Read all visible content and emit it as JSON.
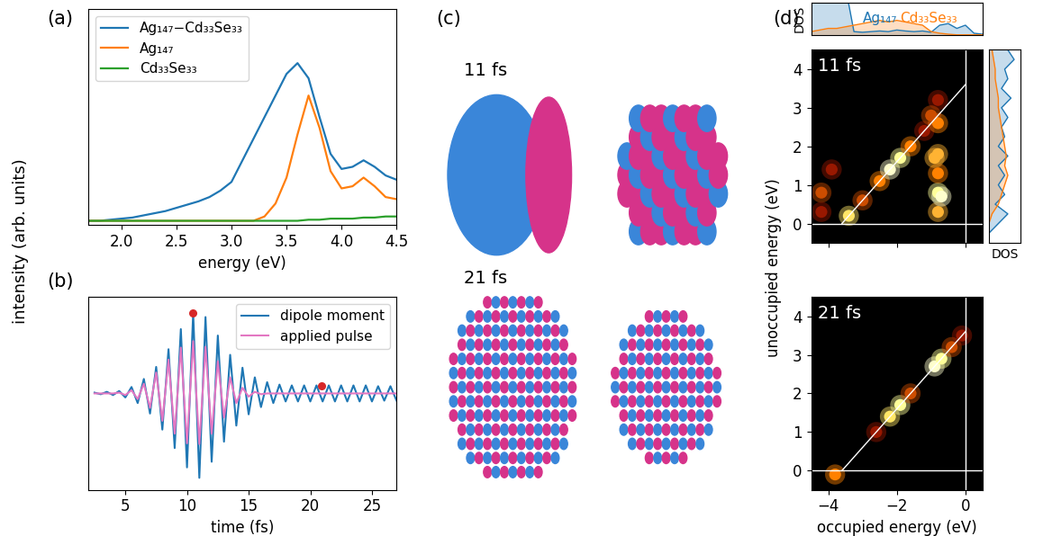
{
  "chart_data": [
    {
      "type": "line",
      "panel": "(a)",
      "xlabel": "energy (eV)",
      "ylabel": "intensity (arb. units)",
      "x": [
        1.7,
        1.8,
        1.9,
        2.0,
        2.1,
        2.2,
        2.3,
        2.4,
        2.5,
        2.6,
        2.7,
        2.8,
        2.9,
        3.0,
        3.1,
        3.2,
        3.3,
        3.4,
        3.5,
        3.6,
        3.7,
        3.8,
        3.9,
        4.0,
        4.1,
        4.2,
        4.3,
        4.4,
        4.5
      ],
      "series": [
        {
          "name": "Ag₁₄₇−Cd₃₃Se₃₃",
          "color": "#1f77b4",
          "values": [
            0.02,
            0.02,
            0.025,
            0.03,
            0.035,
            0.045,
            0.055,
            0.065,
            0.08,
            0.095,
            0.11,
            0.13,
            0.16,
            0.2,
            0.3,
            0.4,
            0.5,
            0.6,
            0.7,
            0.75,
            0.68,
            0.5,
            0.33,
            0.26,
            0.27,
            0.3,
            0.27,
            0.23,
            0.21
          ]
        },
        {
          "name": "Ag₁₄₇",
          "color": "#ff7f0e",
          "values": [
            0.02,
            0.02,
            0.02,
            0.02,
            0.02,
            0.02,
            0.02,
            0.02,
            0.02,
            0.02,
            0.02,
            0.02,
            0.02,
            0.02,
            0.02,
            0.02,
            0.04,
            0.1,
            0.22,
            0.42,
            0.6,
            0.45,
            0.25,
            0.17,
            0.18,
            0.22,
            0.18,
            0.13,
            0.12
          ]
        },
        {
          "name": "Cd₃₃Se₃₃",
          "color": "#2ca02c",
          "values": [
            0.02,
            0.02,
            0.02,
            0.02,
            0.02,
            0.02,
            0.02,
            0.02,
            0.02,
            0.02,
            0.02,
            0.02,
            0.02,
            0.02,
            0.02,
            0.02,
            0.02,
            0.02,
            0.02,
            0.02,
            0.025,
            0.025,
            0.03,
            0.03,
            0.03,
            0.035,
            0.035,
            0.04,
            0.04
          ]
        }
      ],
      "xlim": [
        1.7,
        4.5
      ],
      "xticks": [
        2.0,
        2.5,
        3.0,
        3.5,
        4.0,
        4.5
      ],
      "ylim": [
        0,
        1
      ],
      "yticks": [],
      "tick_labels": "x",
      "legend": "upper left"
    },
    {
      "type": "line",
      "panel": "(b)",
      "xlabel": "time (fs)",
      "x": [
        2.5,
        3.0,
        3.5,
        4.0,
        4.5,
        5.0,
        5.5,
        6.0,
        6.5,
        7.0,
        7.5,
        8.0,
        8.5,
        9.0,
        9.5,
        10.0,
        10.5,
        11.0,
        11.5,
        12.0,
        12.5,
        13.0,
        13.5,
        14.0,
        14.5,
        15.0,
        15.5,
        16.0,
        16.5,
        17.0,
        17.5,
        18.0,
        18.5,
        19.0,
        19.5,
        20.0,
        20.5,
        21.0,
        21.5,
        22.0,
        22.5,
        23.0,
        23.5,
        24.0,
        24.5,
        25.0,
        25.5,
        26.0,
        26.5,
        27.0
      ],
      "series": [
        {
          "name": "dipole moment",
          "color": "#1f77b4",
          "values": [
            0.01,
            -0.01,
            0.02,
            -0.02,
            0.03,
            -0.05,
            0.08,
            -0.12,
            0.18,
            -0.25,
            0.33,
            -0.45,
            0.55,
            -0.68,
            0.8,
            -0.92,
            1.0,
            -1.05,
            0.95,
            -0.85,
            0.72,
            -0.6,
            0.48,
            -0.4,
            0.32,
            -0.26,
            0.2,
            -0.17,
            0.14,
            -0.12,
            0.11,
            -0.1,
            0.1,
            -0.1,
            0.1,
            -0.1,
            0.1,
            -0.1,
            0.1,
            -0.1,
            0.1,
            -0.1,
            0.1,
            -0.1,
            0.1,
            -0.1,
            0.09,
            -0.09,
            0.09,
            -0.09
          ]
        },
        {
          "name": "applied pulse",
          "color": "#e377c2",
          "values": [
            0,
            0,
            0,
            0,
            0.01,
            -0.02,
            0.04,
            -0.07,
            0.12,
            -0.18,
            0.26,
            -0.34,
            0.42,
            -0.5,
            0.57,
            -0.62,
            0.65,
            -0.63,
            0.58,
            -0.5,
            0.4,
            -0.3,
            0.2,
            -0.12,
            0.07,
            -0.04,
            0.02,
            -0.01,
            0,
            0,
            0,
            0,
            0,
            0,
            0,
            0,
            0,
            0,
            0,
            0,
            0,
            0,
            0,
            0,
            0,
            0,
            0,
            0,
            0,
            0
          ]
        }
      ],
      "points": {
        "x": [
          10.5,
          20.9
        ],
        "y": [
          1.0,
          0.1
        ],
        "color": "#d62728",
        "marker": "o"
      },
      "xlim": [
        2,
        27
      ],
      "xticks": [
        5,
        10,
        15,
        20,
        25
      ],
      "ylim": [
        -1.2,
        1.2
      ],
      "yticks": [],
      "tick_labels": "x",
      "legend": "upper right"
    },
    {
      "type": "image",
      "panel": "(c)",
      "frames": [
        {
          "label": "11 fs"
        },
        {
          "label": "21 fs"
        }
      ]
    },
    {
      "type": "heatmap",
      "panel": "(d)",
      "xlabel": "occupied energy (eV)",
      "ylabel": "unoccupied energy (eV)",
      "xlim": [
        -4.5,
        0.5
      ],
      "ylim": [
        -0.5,
        4.5
      ],
      "xticks": [
        {
          "value": -4,
          "label": "−4"
        },
        {
          "value": -2,
          "label": "−2"
        },
        0
      ],
      "yticks": [
        0,
        1,
        2,
        3,
        4
      ],
      "color_range": [
        0,
        1
      ],
      "reference_lines": {
        "diagonal_offset": 3.6,
        "zero": 0
      },
      "frames": [
        {
          "label": "11 fs",
          "tick_labels": "y",
          "spots": {
            "occupied": [
              -3.4,
              -3.0,
              -2.5,
              -2.2,
              -1.9,
              -1.6,
              -1.2,
              -0.8,
              -0.8,
              -0.8,
              -0.8,
              -0.8,
              -0.8,
              -0.7,
              -0.9,
              -4.2,
              -4.2,
              -3.9,
              -1.0
            ],
            "unoccupied": [
              0.2,
              0.6,
              1.1,
              1.4,
              1.7,
              2.0,
              2.4,
              0.3,
              0.8,
              1.3,
              1.8,
              2.6,
              3.2,
              0.7,
              1.7,
              0.8,
              0.3,
              1.4,
              2.8
            ],
            "intensity": [
              0.7,
              0.4,
              0.5,
              0.9,
              0.8,
              0.5,
              0.3,
              0.6,
              0.8,
              0.5,
              0.6,
              0.5,
              0.3,
              0.9,
              0.6,
              0.4,
              0.3,
              0.3,
              0.4
            ]
          }
        },
        {
          "label": "21 fs",
          "tick_labels": true,
          "spots": {
            "occupied": [
              -3.8,
              -2.6,
              -2.2,
              -1.9,
              -1.6,
              -0.9,
              -0.7,
              -0.4,
              -0.1
            ],
            "unoccupied": [
              -0.1,
              1.0,
              1.4,
              1.7,
              2.0,
              2.7,
              2.9,
              3.2,
              3.5
            ],
            "intensity": [
              0.5,
              0.3,
              0.7,
              0.8,
              0.4,
              0.9,
              0.8,
              0.4,
              0.3
            ]
          }
        }
      ],
      "dos_top": {
        "ylabel": "DOS",
        "ylim": [
          0,
          1
        ],
        "tick_labels": false,
        "x": [
          -4.5,
          -4.25,
          -4.0,
          -3.75,
          -3.5,
          -3.25,
          -3.0,
          -2.75,
          -2.5,
          -2.25,
          -2.0,
          -1.75,
          -1.5,
          -1.25,
          -1.0,
          -0.75,
          -0.5,
          -0.25,
          0,
          0.25,
          0.5
        ],
        "series": [
          {
            "name": "Ag₁₄₇",
            "color": "#1f77b4",
            "values": [
              1.5,
              1.5,
              1.5,
              1.5,
              1.5,
              0.1,
              0.08,
              0.1,
              0.12,
              0.1,
              0.15,
              0.12,
              0.1,
              0.12,
              0.08,
              0.3,
              0.35,
              0.2,
              0.3,
              0.05,
              0.02
            ]
          },
          {
            "name": "Cd₃₃Se₃₃",
            "color": "#ff7f0e",
            "values": [
              0.1,
              0.15,
              0.2,
              0.2,
              0.25,
              0.3,
              0.35,
              0.4,
              0.45,
              0.4,
              0.45,
              0.4,
              0.35,
              0.3,
              0.1,
              0.05,
              0.02,
              0,
              0,
              0,
              0
            ]
          }
        ]
      },
      "dos_right": {
        "xlabel": "DOS",
        "xlim": [
          0,
          1
        ],
        "tick_labels": false,
        "y": [
          -0.5,
          -0.25,
          0,
          0.25,
          0.5,
          0.75,
          1.0,
          1.25,
          1.5,
          1.75,
          2.0,
          2.25,
          2.5,
          2.75,
          3.0,
          3.25,
          3.5,
          3.75,
          4.0,
          4.25,
          4.5
        ],
        "series": [
          {
            "color": "#1f77b4",
            "values": [
              0,
              0,
              0.3,
              0.6,
              0.2,
              0.5,
              0.3,
              0.5,
              0.3,
              0.6,
              0.3,
              0.5,
              0.4,
              0.6,
              0.4,
              0.7,
              0.4,
              0.6,
              0.5,
              0.8,
              0.6
            ]
          },
          {
            "color": "#ff7f0e",
            "values": [
              0,
              0,
              0,
              0.1,
              0.3,
              0.4,
              0.5,
              0.6,
              0.5,
              0.55,
              0.5,
              0.45,
              0.4,
              0.35,
              0.3,
              0.3,
              0.25,
              0.2,
              0.2,
              0.15,
              0.1
            ]
          }
        ]
      }
    }
  ]
}
